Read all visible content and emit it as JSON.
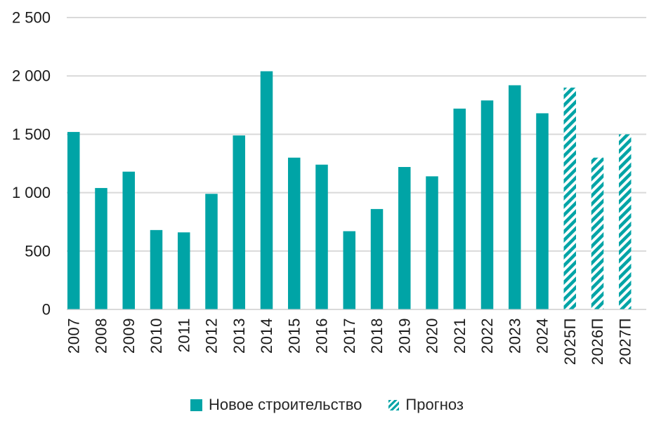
{
  "colors": {
    "accent": "#00A4A6",
    "gridline": "#D9D9D9",
    "axis_text": "#1A1A1A",
    "legend_text": "#262626",
    "background": "#FFFFFF"
  },
  "chart_data": {
    "type": "bar",
    "title": "",
    "xlabel": "",
    "ylabel": "",
    "categories": [
      "2007",
      "2008",
      "2009",
      "2010",
      "2011",
      "2012",
      "2013",
      "2014",
      "2015",
      "2016",
      "2017",
      "2018",
      "2019",
      "2020",
      "2021",
      "2022",
      "2023",
      "2024",
      "2025П",
      "2026П",
      "2027П"
    ],
    "series": [
      {
        "name": "Новое строительство",
        "pattern": "solid",
        "values": [
          1520,
          1040,
          1180,
          680,
          660,
          990,
          1490,
          2040,
          1300,
          1240,
          670,
          860,
          1220,
          1140,
          1720,
          1790,
          1920,
          1680,
          null,
          null,
          null
        ]
      },
      {
        "name": "Прогноз",
        "pattern": "hatched",
        "values": [
          null,
          null,
          null,
          null,
          null,
          null,
          null,
          null,
          null,
          null,
          null,
          null,
          null,
          null,
          null,
          null,
          null,
          null,
          1900,
          1300,
          1500
        ]
      }
    ],
    "ylim": [
      0,
      2500
    ],
    "yticks": [
      "0",
      "500",
      "1 000",
      "1 500",
      "2 000",
      "2 500"
    ],
    "grid": true,
    "legend_position": "bottom"
  }
}
